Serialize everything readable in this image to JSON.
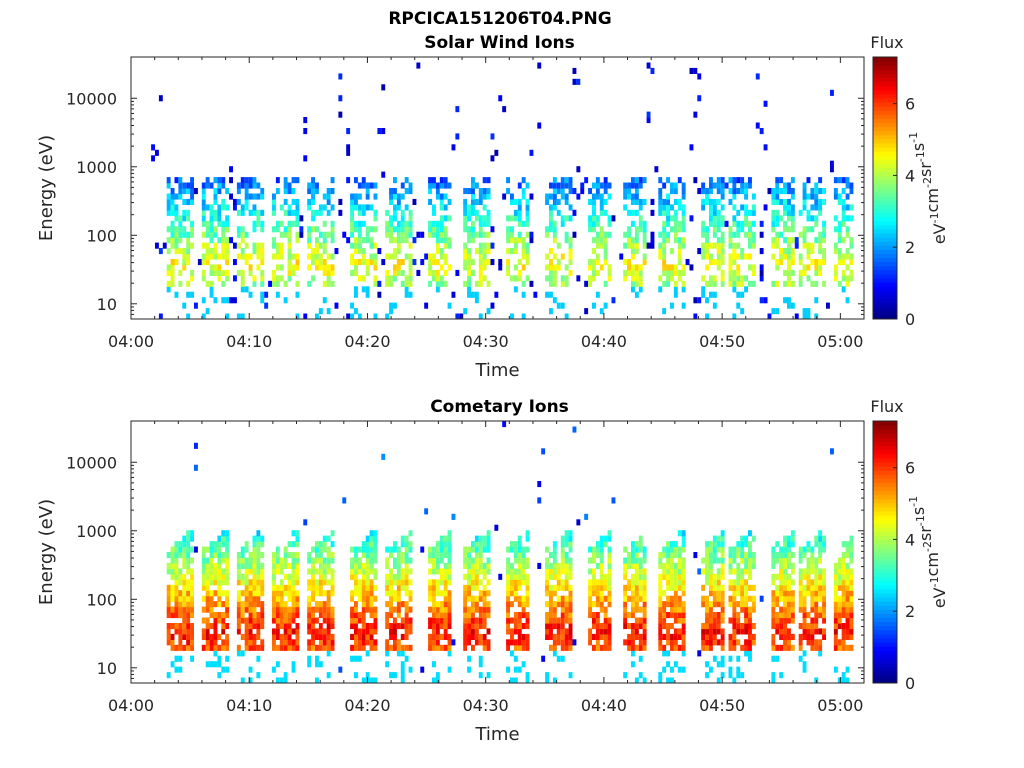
{
  "figure_title": "RPCICA151206T04.PNG",
  "chart_data": [
    {
      "type": "heatmap",
      "title": "Solar Wind Ions",
      "xlabel": "Time",
      "ylabel": "Energy (eV)",
      "x_ticks": [
        "04:00",
        "04:10",
        "04:20",
        "04:30",
        "04:40",
        "04:50",
        "05:00"
      ],
      "xlim": [
        "04:00",
        "05:02"
      ],
      "y_scale": "log",
      "y_ticks": [
        10,
        100,
        1000,
        10000
      ],
      "y_tick_labels": [
        "10",
        "100",
        "1000",
        "10000"
      ],
      "ylim": [
        6,
        40000
      ],
      "colorbar": {
        "title": "Flux",
        "label": "eV-1 cm-2 sr-1 s-1",
        "ticks": [
          0,
          2,
          4,
          6
        ],
        "range": [
          0,
          7.3
        ],
        "colormap": "jet"
      },
      "description_of_pattern": {
        "burst_times_min": [
          4,
          7,
          10,
          13,
          16,
          19.5,
          22.5,
          26,
          29,
          32.5,
          36,
          39.5,
          42.5,
          45.5,
          49,
          51.5,
          55,
          57.5,
          60.5
        ],
        "peak_energy_eV": 35,
        "peak_flux": 4.5,
        "background_flux": 0.5
      }
    },
    {
      "type": "heatmap",
      "title": "Cometary Ions",
      "xlabel": "Time",
      "ylabel": "Energy (eV)",
      "x_ticks": [
        "04:00",
        "04:10",
        "04:20",
        "04:30",
        "04:40",
        "04:50",
        "05:00"
      ],
      "xlim": [
        "04:00",
        "05:02"
      ],
      "y_scale": "log",
      "y_ticks": [
        10,
        100,
        1000,
        10000
      ],
      "y_tick_labels": [
        "10",
        "100",
        "1000",
        "10000"
      ],
      "ylim": [
        6,
        40000
      ],
      "colorbar": {
        "title": "Flux",
        "label": "eV-1 cm-2 sr-1 s-1",
        "ticks": [
          0,
          2,
          4,
          6
        ],
        "range": [
          0,
          7.3
        ],
        "colormap": "jet"
      },
      "description_of_pattern": {
        "burst_times_min": [
          4,
          7,
          10,
          13,
          16,
          19.5,
          22.5,
          26,
          29,
          32.5,
          36,
          39.5,
          42.5,
          45.5,
          49,
          51.5,
          55,
          57.5,
          60.5
        ],
        "peak_energy_eV": 30,
        "peak_flux": 6.3,
        "background_flux": 1.0
      }
    }
  ]
}
